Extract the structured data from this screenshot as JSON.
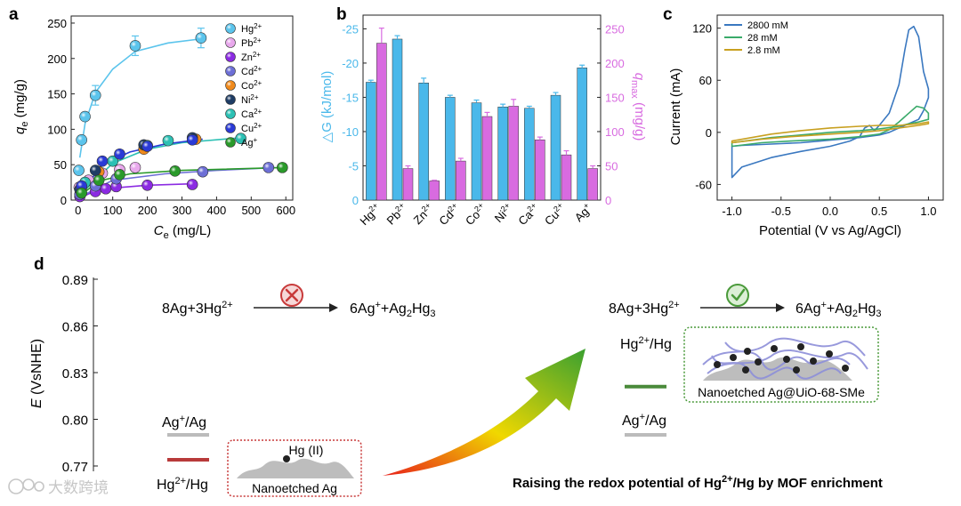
{
  "panel_labels": {
    "a": "a",
    "b": "b",
    "c": "c",
    "d": "d"
  },
  "colors": {
    "hg": "#5bc4ec",
    "pb": "#e8a8ec",
    "zn": "#8b2be2",
    "cd": "#6d6fd6",
    "co": "#f08a1c",
    "ni": "#1e3c64",
    "ca": "#2cc0b4",
    "cu": "#2a3ad6",
    "ag": "#2a9a2a",
    "bar_dg": "#4ab8ea",
    "bar_q": "#d86be0",
    "cv_2800": "#3a78c0",
    "cv_28": "#3aaa6a",
    "cv_2_8": "#c8a020",
    "bad": "#c83a3a",
    "good": "#4a9a3a",
    "ag_line": "#bbbbbb",
    "hg_red": "#b83a3a",
    "hg_green": "#4a8a3a"
  },
  "chart_data": [
    {
      "id": "a",
      "type": "scatter",
      "xlabel": "C",
      "xlabel_sub": "e",
      "xlabel_unit": " (mg/L)",
      "ylabel": "q",
      "ylabel_sub": "e",
      "ylabel_unit": " (mg/g)",
      "xlim": [
        -20,
        620
      ],
      "ylim": [
        0,
        260
      ],
      "xticks": [
        0,
        100,
        200,
        300,
        400,
        500,
        600
      ],
      "yticks": [
        0,
        50,
        100,
        150,
        200,
        250
      ],
      "series": [
        {
          "name": "Hg",
          "sup": "2+",
          "color": "#5bc4ec",
          "x": [
            2,
            10,
            20,
            50,
            165,
            355
          ],
          "y": [
            42,
            85,
            118,
            148,
            218,
            229
          ],
          "fit": [
            [
              5,
              60
            ],
            [
              20,
              108
            ],
            [
              50,
              152
            ],
            [
              100,
              185
            ],
            [
              165,
              210
            ],
            [
              260,
              222
            ],
            [
              360,
              228
            ]
          ]
        },
        {
          "name": "Pb",
          "sup": "2+",
          "color": "#e8a8ec",
          "x": [
            3,
            30,
            70,
            120,
            165
          ],
          "y": [
            18,
            28,
            38,
            43,
            46
          ],
          "fit": []
        },
        {
          "name": "Zn",
          "sup": "2+",
          "color": "#8b2be2",
          "x": [
            5,
            50,
            80,
            110,
            200,
            330
          ],
          "y": [
            5,
            12,
            16,
            19,
            21,
            22
          ],
          "fit": [
            [
              0,
              2
            ],
            [
              50,
              13
            ],
            [
              100,
              17
            ],
            [
              200,
              21
            ],
            [
              330,
              23
            ]
          ]
        },
        {
          "name": "Cd",
          "sup": "2+",
          "color": "#6d6fd6",
          "x": [
            5,
            50,
            110,
            360,
            550
          ],
          "y": [
            8,
            20,
            30,
            40,
            46
          ],
          "fit": [
            [
              0,
              3
            ],
            [
              100,
              28
            ],
            [
              250,
              37
            ],
            [
              400,
              42
            ],
            [
              570,
              46
            ]
          ]
        },
        {
          "name": "Co",
          "sup": "2+",
          "color": "#f08a1c",
          "x": [
            10,
            60,
            190,
            340
          ],
          "y": [
            18,
            40,
            72,
            86
          ],
          "fit": []
        },
        {
          "name": "Ni",
          "sup": "2+",
          "color": "#1e3c64",
          "x": [
            5,
            50,
            190,
            330
          ],
          "y": [
            15,
            42,
            78,
            88
          ],
          "fit": []
        },
        {
          "name": "Ca",
          "sup": "2+",
          "color": "#2cc0b4",
          "x": [
            20,
            100,
            200,
            260,
            470
          ],
          "y": [
            25,
            55,
            77,
            84,
            87
          ],
          "fit": [
            [
              0,
              5
            ],
            [
              100,
              52
            ],
            [
              200,
              72
            ],
            [
              300,
              81
            ],
            [
              470,
              88
            ]
          ]
        },
        {
          "name": "Cu",
          "sup": "2+",
          "color": "#2a3ad6",
          "x": [
            10,
            70,
            120,
            200,
            330
          ],
          "y": [
            20,
            55,
            65,
            76,
            85
          ],
          "fit": [
            [
              0,
              5
            ],
            [
              70,
              50
            ],
            [
              150,
              68
            ],
            [
              250,
              79
            ],
            [
              360,
              86
            ]
          ]
        },
        {
          "name": "Ag",
          "sup": "+",
          "color": "#2a9a2a",
          "x": [
            10,
            60,
            120,
            280,
            590
          ],
          "y": [
            10,
            28,
            36,
            41,
            46
          ],
          "fit": [
            [
              0,
              4
            ],
            [
              60,
              27
            ],
            [
              150,
              37
            ],
            [
              300,
              42
            ],
            [
              590,
              46
            ]
          ]
        }
      ]
    },
    {
      "id": "b",
      "type": "bar",
      "categories": [
        "Hg",
        "Pb",
        "Zn",
        "Cd",
        "Co",
        "Ni",
        "Ca",
        "Cu",
        "Ag"
      ],
      "category_sups": [
        "2+",
        "2+",
        "2+",
        "2+",
        "2+",
        "2+",
        "2+",
        "2+",
        "+"
      ],
      "series": [
        {
          "name": "ΔG",
          "values": [
            -17.2,
            -23.5,
            -17.1,
            -15.0,
            -14.2,
            -13.6,
            -13.4,
            -15.3,
            -19.3
          ],
          "errors": [
            0.3,
            0.5,
            0.7,
            0.3,
            0.4,
            0.4,
            0.3,
            0.4,
            0.4
          ]
        },
        {
          "name": "q_max",
          "values": [
            229,
            46,
            28,
            57,
            122,
            137,
            88,
            66,
            46
          ],
          "errors": [
            22,
            4,
            1,
            4,
            6,
            10,
            4,
            6,
            4
          ]
        }
      ],
      "ylabel_left": "△G (kJ/mol)",
      "ylabel_right": "q",
      "ylabel_right_sub": "max",
      "ylabel_right_unit": " (mg/g)",
      "ylim_left": [
        0,
        -27
      ],
      "ylim_right": [
        0,
        270
      ],
      "yticks_left": [
        0,
        -5,
        -10,
        -15,
        -20,
        -25
      ],
      "yticks_right": [
        0,
        50,
        100,
        150,
        200,
        250
      ]
    },
    {
      "id": "c",
      "type": "line",
      "xlabel": "Potential (V vs Ag/AgCl)",
      "ylabel": "Current (mA)",
      "xlim": [
        -1.15,
        1.15
      ],
      "ylim": [
        -78,
        135
      ],
      "xticks": [
        -1.0,
        -0.5,
        0.0,
        0.5,
        1.0
      ],
      "yticks": [
        -60,
        0,
        60,
        120
      ],
      "series": [
        {
          "name": "2800 mM",
          "color": "#3a78c0",
          "x": [
            -1.0,
            -0.9,
            -0.6,
            -0.3,
            0.0,
            0.2,
            0.3,
            0.35,
            0.4,
            0.45,
            0.5,
            0.6,
            0.7,
            0.76,
            0.8,
            0.85,
            0.9,
            0.95,
            1.0,
            1.0,
            0.95,
            0.9,
            0.8,
            0.7,
            0.6,
            0.5,
            0.3,
            0.1,
            -0.1,
            -0.3,
            -0.5,
            -0.7,
            -0.9,
            -1.0
          ],
          "y": [
            -52,
            -40,
            -29,
            -22,
            -16,
            -10,
            -5,
            5,
            8,
            2,
            8,
            22,
            55,
            95,
            118,
            122,
            110,
            70,
            50,
            40,
            25,
            15,
            10,
            5,
            0,
            -3,
            -6,
            -8,
            -10,
            -12,
            -13,
            -14,
            -15,
            -16
          ]
        },
        {
          "name": "28 mM",
          "color": "#3aaa6a",
          "x": [
            -1.0,
            -0.7,
            -0.4,
            0.0,
            0.3,
            0.5,
            0.6,
            0.7,
            0.8,
            0.88,
            0.95,
            1.0,
            1.0,
            0.9,
            0.8,
            0.7,
            0.5,
            0.3,
            0.0,
            -0.3,
            -0.6,
            -1.0
          ],
          "y": [
            -16,
            -12,
            -10,
            -8,
            -5,
            -2,
            3,
            12,
            22,
            30,
            28,
            22,
            15,
            12,
            10,
            7,
            4,
            2,
            0,
            -3,
            -6,
            -12
          ]
        },
        {
          "name": "2.8 mM",
          "color": "#c8a020",
          "x": [
            -1.0,
            -0.7,
            -0.4,
            0.0,
            0.3,
            0.5,
            0.7,
            0.9,
            1.0,
            1.0,
            0.9,
            0.7,
            0.5,
            0.3,
            0.0,
            -0.3,
            -0.6,
            -1.0
          ],
          "y": [
            -12,
            -8,
            -5,
            -2,
            0,
            2,
            5,
            8,
            10,
            12,
            10,
            8,
            8,
            7,
            5,
            2,
            -2,
            -10
          ]
        }
      ],
      "legend": [
        "2800 mM",
        "28 mM",
        "2.8 mM"
      ]
    },
    {
      "id": "d",
      "type": "scatter",
      "ylabel": "E",
      "ylabel_unit": " (VsNHE)",
      "ylim": [
        0.765,
        0.892
      ],
      "yticks": [
        0.77,
        0.8,
        0.83,
        0.86,
        0.89
      ],
      "levels": [
        {
          "name": "Ag+/Ag left",
          "value": 0.79
        },
        {
          "name": "Hg2+/Hg left",
          "value": 0.774
        },
        {
          "name": "Hg2+/Hg right",
          "value": 0.821
        },
        {
          "name": "Ag+/Ag right",
          "value": 0.79
        }
      ]
    }
  ],
  "panel_d": {
    "reaction_left": {
      "lhs": "8Ag+3Hg",
      "lhs_sup": "2+",
      "rhs": "6Ag",
      "rhs_sup": "+",
      "rhs_rest": "+Ag",
      "rhs_sub1": "2",
      "rhs_mid": "Hg",
      "rhs_sub2": "3"
    },
    "reaction_right": {
      "lhs": "8Ag+3Hg",
      "lhs_sup": "2+",
      "rhs": "6Ag",
      "rhs_sup": "+",
      "rhs_rest": "+Ag",
      "rhs_sub1": "2",
      "rhs_mid": "Hg",
      "rhs_sub2": "3"
    },
    "label_ag_left": "Ag",
    "label_ag_left_sup": "+",
    "label_ag_left_rest": "/Ag",
    "label_hg_left": "Hg",
    "label_hg_left_sup": "2+",
    "label_hg_left_rest": "/Hg",
    "label_hg_right": "Hg",
    "label_hg_right_sup": "2+",
    "label_hg_right_rest": "/Hg",
    "label_ag_right": "Ag",
    "label_ag_right_sup": "+",
    "label_ag_right_rest": "/Ag",
    "hg_ii": "Hg (II)",
    "box_left": "Nanoetched Ag",
    "box_right": "Nanoetched Ag@UiO-68-SMe",
    "caption_pre": "Raising the redox potential of Hg",
    "caption_sup": "2+",
    "caption_post": "/Hg by MOF enrichment"
  },
  "watermark": "大数跨境"
}
